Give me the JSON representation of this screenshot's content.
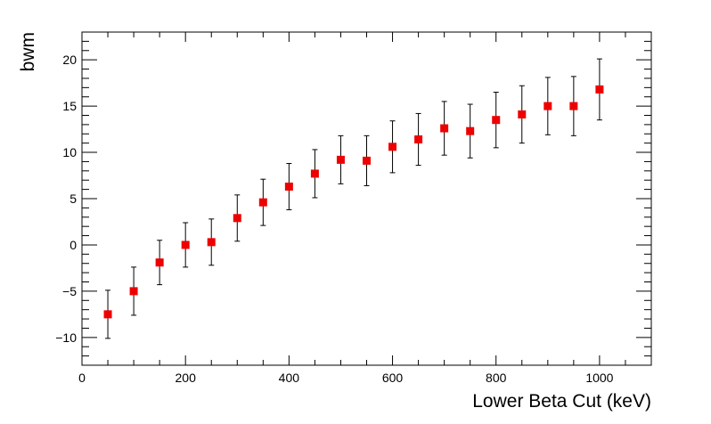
{
  "chart_data": {
    "type": "scatter",
    "title": "",
    "xlabel": "Lower Beta Cut (keV)",
    "ylabel": "bwm",
    "xlim": [
      0,
      1100
    ],
    "ylim": [
      -13,
      23
    ],
    "x_ticks": [
      0,
      200,
      400,
      600,
      800,
      1000
    ],
    "y_ticks": [
      -10,
      -5,
      0,
      5,
      10,
      15,
      20
    ],
    "grid": false,
    "marker_color": "#ee0000",
    "errorbar_color": "#000000",
    "series": [
      {
        "x": [
          50,
          100,
          150,
          200,
          250,
          300,
          350,
          400,
          450,
          500,
          550,
          600,
          650,
          700,
          750,
          800,
          850,
          900,
          950,
          1000
        ],
        "y": [
          -7.5,
          -5.0,
          -1.9,
          0.0,
          0.3,
          2.9,
          4.6,
          6.3,
          7.7,
          9.2,
          9.1,
          10.6,
          11.4,
          12.6,
          12.3,
          13.5,
          14.1,
          15.0,
          15.0,
          16.8
        ],
        "err": [
          2.6,
          2.6,
          2.4,
          2.4,
          2.5,
          2.5,
          2.5,
          2.5,
          2.6,
          2.6,
          2.7,
          2.8,
          2.8,
          2.9,
          2.9,
          3.0,
          3.1,
          3.1,
          3.2,
          3.3
        ]
      }
    ]
  }
}
